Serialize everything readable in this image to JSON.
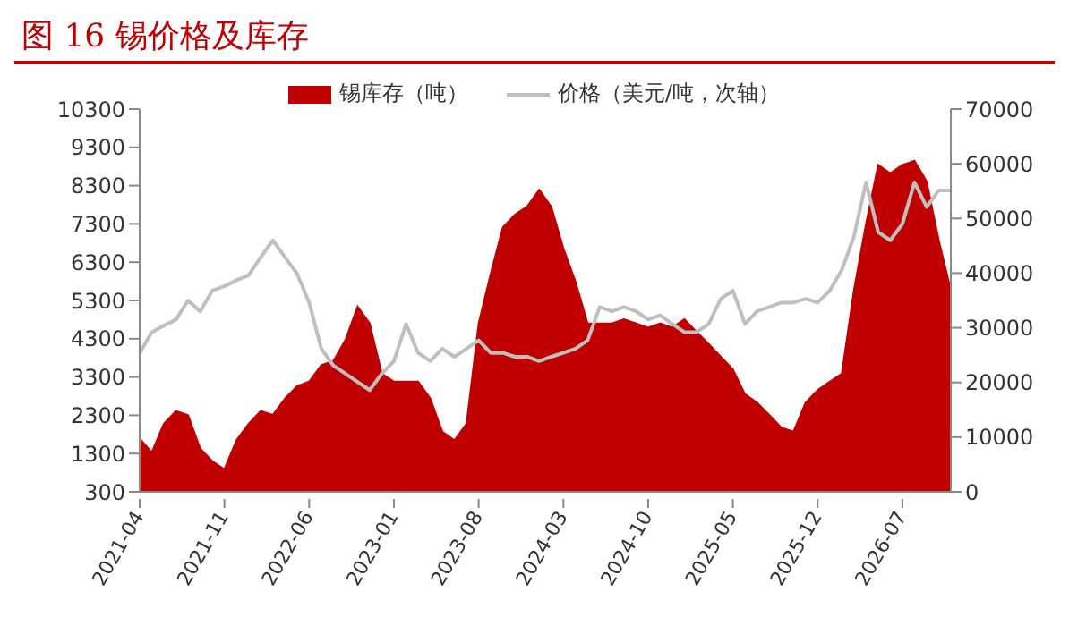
{
  "chart_data": {
    "type": "area",
    "title": "图 16 锡价格及库存",
    "categories": [
      "2021-04",
      null,
      null,
      null,
      null,
      null,
      null,
      "2021-11",
      null,
      null,
      null,
      null,
      null,
      null,
      "2022-06",
      null,
      null,
      null,
      null,
      null,
      null,
      "2023-01",
      null,
      null,
      null,
      null,
      null,
      null,
      "2023-08",
      null,
      null,
      null,
      null,
      null,
      null,
      "2024-03",
      null,
      null,
      null,
      null,
      null,
      null,
      "2024-10",
      null,
      null,
      null,
      null,
      null,
      null,
      "2025-05",
      null,
      null,
      null,
      null,
      null,
      null,
      "2025-12",
      null,
      null,
      null,
      null,
      null,
      null,
      "2026-07",
      null,
      null,
      null,
      null
    ],
    "series": [
      {
        "name": "锡库存（吨）",
        "color": "#c00000",
        "values": [
          1690,
          1330,
          2080,
          2410,
          2300,
          1430,
          1100,
          890,
          1650,
          2080,
          2410,
          2310,
          2740,
          3060,
          3180,
          3610,
          3720,
          4270,
          5140,
          4700,
          3390,
          3180,
          3180,
          3180,
          2740,
          1870,
          1650,
          2080,
          4700,
          6010,
          7210,
          7540,
          7750,
          8190,
          7750,
          6660,
          5790,
          4700,
          4700,
          4700,
          4810,
          4700,
          4590,
          4700,
          4590,
          4810,
          4480,
          4160,
          3830,
          3500,
          2850,
          2630,
          2310,
          1980,
          1870,
          2630,
          2960,
          3180,
          3390,
          5570,
          7310,
          8840,
          8620,
          8840,
          8950,
          8410,
          6880,
          5570
        ]
      },
      {
        "name": "价格（美元/吨，次轴）",
        "type": "line",
        "axis": "y2",
        "color": "#bfbfbf",
        "values": [
          25400,
          29200,
          30400,
          31500,
          35000,
          33000,
          36800,
          37600,
          38700,
          39600,
          42900,
          46000,
          42900,
          39900,
          34600,
          26200,
          23100,
          21600,
          20100,
          18600,
          21600,
          23900,
          30700,
          25400,
          23900,
          26200,
          24700,
          26200,
          27700,
          25400,
          25400,
          24700,
          24700,
          23900,
          24700,
          25400,
          26200,
          27700,
          33800,
          33000,
          33800,
          33000,
          31500,
          32300,
          30700,
          29200,
          29200,
          30700,
          35300,
          36800,
          30700,
          33000,
          33800,
          34600,
          34600,
          35300,
          34600,
          36800,
          40600,
          46700,
          56600,
          47500,
          46000,
          49000,
          56600,
          52100,
          55100,
          55100
        ]
      }
    ],
    "ylim": [
      300,
      10300
    ],
    "yticks": [
      300,
      1300,
      2300,
      3300,
      4300,
      5300,
      6300,
      7300,
      8300,
      9300,
      10300
    ],
    "y2lim": [
      0,
      70000
    ],
    "y2ticks": [
      0,
      10000,
      20000,
      30000,
      40000,
      50000,
      60000,
      70000
    ],
    "legend": "top",
    "grid": false
  }
}
